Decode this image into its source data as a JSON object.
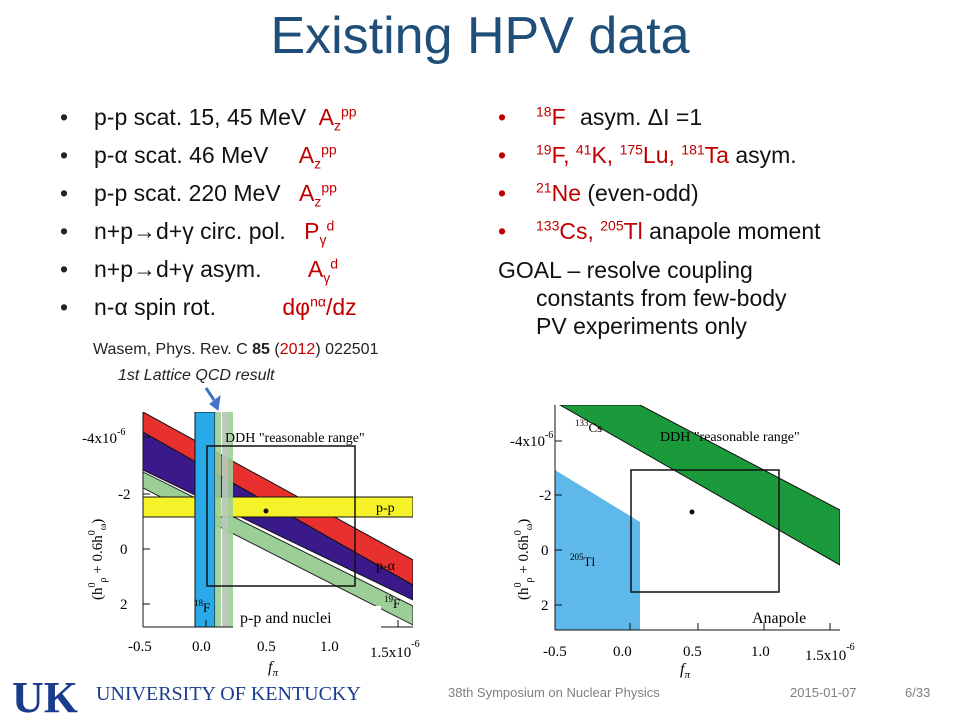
{
  "slide": {
    "title": "Existing HPV data",
    "left_bullets": [
      {
        "text": "p-p scat. 15, 45 MeV",
        "obs": "A",
        "obs_sub": "z",
        "obs_sup": "pp"
      },
      {
        "text_a": "p-",
        "alpha": "α",
        "text_b": " scat. 46 MeV",
        "obs": "A",
        "obs_sub": "z",
        "obs_sup": "pp"
      },
      {
        "text": "p-p scat. 220 MeV",
        "obs": "A",
        "obs_sub": "z",
        "obs_sup": "pp"
      },
      {
        "text_a": "n+p",
        "arrow": "→",
        "text_b": "d+",
        "gamma": "γ",
        "text_c": " circ. pol.",
        "obs": "P",
        "obs_sub": "γ",
        "obs_sup": "d"
      },
      {
        "text_a": "n+p",
        "arrow": "→",
        "text_b": "d+",
        "gamma": "γ",
        "text_c": " asym.",
        "obs": "A",
        "obs_sub": "γ",
        "obs_sup": "d"
      },
      {
        "text_a": "n-",
        "alpha": "α",
        "text_b": " spin rot.",
        "obs_a": "dφ",
        "obs_sup": "nα",
        "obs_b": "/dz"
      }
    ],
    "right_bullets": [
      {
        "sup1": "18",
        "el1": "F",
        "text": " asym. ΔI =1"
      },
      {
        "sup1": "19",
        "el1": "F, ",
        "sup2": "41",
        "el2": "K, ",
        "sup3": "175",
        "el3": "Lu, ",
        "sup4": "181",
        "el4": "Ta",
        "text": " asym."
      },
      {
        "sup1": "21",
        "el1": "Ne",
        "text": " (even-odd)"
      },
      {
        "sup1": "133",
        "el1": "Cs, ",
        "sup2": "205",
        "el2": "Tl",
        "text": " anapole moment"
      }
    ],
    "goal": {
      "line1": "GOAL – resolve coupling",
      "line2": "constants from few-body",
      "line3": "PV experiments only"
    },
    "citation": {
      "a": "Wasem, Phys. Rev. C ",
      "vol": "85",
      "b": " (",
      "year": "2012",
      "c": ") 022501"
    },
    "lattice_note": "1st Lattice QCD result"
  },
  "plots": {
    "left": {
      "y_ticks": [
        "-4x10",
        "-2",
        "0",
        "2"
      ],
      "y_exp": "-6",
      "x_ticks": [
        "-0.5",
        "0.0",
        "0.5",
        "1.0",
        "1.5x10"
      ],
      "x_exp": "-6",
      "xlabel": "f",
      "xlabel_sub": "π",
      "ylabel": "(h",
      "ylabel_rest": "+ 0.6h",
      "box_label": "DDH \"reasonable range\"",
      "label_pp": "p-p",
      "label_palpha": "p-α",
      "label_18f": "F",
      "label_18f_sup": "18",
      "label_19f": "F",
      "label_19f_sup": "19",
      "caption": "p-p and nuclei"
    },
    "right": {
      "y_ticks": [
        "-4x10",
        "-2",
        "0",
        "2"
      ],
      "y_exp": "-6",
      "x_ticks": [
        "-0.5",
        "0.0",
        "0.5",
        "1.0",
        "1.5x10"
      ],
      "x_exp": "-6",
      "xlabel": "f",
      "xlabel_sub": "π",
      "box_label": "DDH \"reasonable range\"",
      "label_cs": "Cs",
      "label_cs_sup": "133",
      "label_tl": "Tl",
      "label_tl_sup": "205",
      "caption": "Anapole"
    },
    "colors": {
      "red": "#e8302f",
      "purple": "#3a1a8a",
      "green_light": "#9ccf98",
      "yellow": "#f6f22a",
      "blue": "#29a9e8",
      "green_dark": "#1a9a3a",
      "blue_light": "#5eb8ea"
    }
  },
  "footer": {
    "univ_name": "UNIVERSITY OF KENTUCKY",
    "logo_letters": "UK",
    "conference": "38th Symposium on Nuclear Physics",
    "date": "2015-01-07",
    "page": "6/33"
  }
}
